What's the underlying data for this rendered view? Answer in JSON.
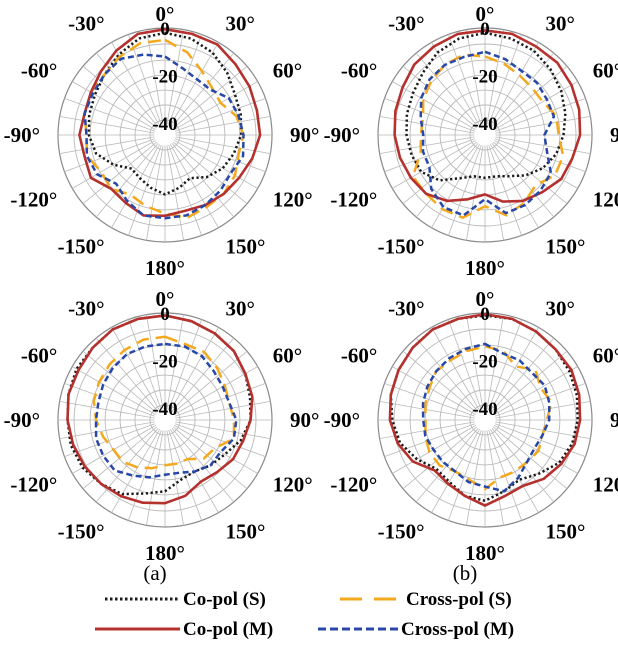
{
  "chart_data": {
    "type": "polar-line",
    "theta_unit": "deg",
    "r_unit": "dB",
    "r_range": [
      -45,
      0
    ],
    "r_ticks": [
      0,
      -20,
      -40
    ],
    "r_tick_labels": [
      "0",
      "-20",
      "-40"
    ],
    "theta_tick_labels": [
      "0°",
      "30°",
      "60°",
      "90°",
      "120°",
      "150°",
      "180°",
      "-150°",
      "-120°",
      "-90°",
      "-60°",
      "-30°"
    ],
    "theta_ticks": [
      0,
      30,
      60,
      90,
      120,
      150,
      180,
      -150,
      -120,
      -90,
      -60,
      -30
    ],
    "column_labels": [
      "(a)",
      "(b)"
    ],
    "legend": [
      {
        "name": "Co-pol (S)",
        "color": "#1a1a1a",
        "style": "dotted"
      },
      {
        "name": "Cross-pol (S)",
        "color": "#f4a81d",
        "style": "long-dash"
      },
      {
        "name": "Co-pol (M)",
        "color": "#b5312e",
        "style": "solid"
      },
      {
        "name": "Cross-pol (M)",
        "color": "#2748a8",
        "style": "dashed"
      }
    ],
    "panels": [
      {
        "id": "a-top",
        "series": [
          {
            "name": "Co-pol (S)",
            "theta": [
              0,
              15,
              30,
              45,
              60,
              75,
              90,
              105,
              120,
              135,
              150,
              165,
              180,
              195,
              210,
              225,
              240,
              255,
              270,
              285,
              300,
              315,
              330,
              345
            ],
            "r": [
              -2,
              -3,
              -5,
              -8,
              -11,
              -12,
              -13,
              -15,
              -17,
              -20,
              -24,
              -22,
              -20,
              -22,
              -24,
              -25,
              -20,
              -15,
              -13,
              -12,
              -11,
              -9,
              -6,
              -3
            ]
          },
          {
            "name": "Cross-pol (S)",
            "theta": [
              0,
              15,
              30,
              45,
              60,
              75,
              90,
              105,
              120,
              135,
              150,
              165,
              180,
              195,
              210,
              225,
              240,
              255,
              270,
              285,
              300,
              315,
              330,
              345
            ],
            "r": [
              -5,
              -9,
              -14,
              -17,
              -18,
              -14,
              -12,
              -13,
              -11,
              -10,
              -10,
              -9,
              -12,
              -14,
              -16,
              -13,
              -14,
              -11,
              -12,
              -10,
              -9,
              -9,
              -7,
              -5
            ]
          },
          {
            "name": "Co-pol (M)",
            "theta": [
              0,
              15,
              30,
              45,
              60,
              75,
              90,
              105,
              120,
              135,
              150,
              165,
              180,
              195,
              210,
              225,
              240,
              255,
              270,
              285,
              300,
              315,
              330,
              345
            ],
            "r": [
              -0.5,
              -1,
              -1,
              -3,
              -4,
              -5,
              -5,
              -7,
              -9,
              -10,
              -11,
              -12,
              -11,
              -10,
              -12,
              -13,
              -9,
              -10,
              -9,
              -10,
              -9,
              -7,
              -4,
              -1
            ]
          },
          {
            "name": "Cross-pol (M)",
            "theta": [
              0,
              15,
              30,
              45,
              60,
              75,
              90,
              105,
              120,
              135,
              150,
              165,
              180,
              195,
              210,
              225,
              240,
              255,
              270,
              285,
              300,
              315,
              330,
              345
            ],
            "r": [
              -12,
              -16,
              -18,
              -18,
              -14,
              -13,
              -12,
              -11,
              -13,
              -12,
              -11,
              -10,
              -10,
              -10,
              -13,
              -16,
              -12,
              -11,
              -12,
              -10,
              -10,
              -9,
              -8,
              -10
            ]
          }
        ]
      },
      {
        "id": "b-top",
        "series": [
          {
            "name": "Co-pol (S)",
            "theta": [
              0,
              15,
              30,
              45,
              60,
              75,
              90,
              105,
              120,
              135,
              150,
              165,
              180,
              195,
              210,
              225,
              240,
              255,
              270,
              285,
              300,
              315,
              330,
              345
            ],
            "r": [
              -2,
              -3,
              -4,
              -6,
              -8,
              -10,
              -12,
              -14,
              -17,
              -21,
              -25,
              -27,
              -27,
              -27,
              -24,
              -18,
              -14,
              -13,
              -12,
              -11,
              -10,
              -8,
              -5,
              -3
            ]
          },
          {
            "name": "Cross-pol (S)",
            "theta": [
              0,
              15,
              30,
              45,
              60,
              75,
              90,
              105,
              120,
              135,
              150,
              165,
              180,
              195,
              210,
              225,
              240,
              255,
              270,
              285,
              300,
              315,
              330,
              345
            ],
            "r": [
              -12,
              -14,
              -16,
              -17,
              -17,
              -14,
              -14,
              -11,
              -11,
              -15,
              -12,
              -10,
              -15,
              -9,
              -9,
              -10,
              -10,
              -17,
              -18,
              -18,
              -15,
              -13,
              -11,
              -10
            ]
          },
          {
            "name": "Co-pol (M)",
            "theta": [
              0,
              15,
              30,
              45,
              60,
              75,
              90,
              105,
              120,
              135,
              150,
              165,
              180,
              195,
              210,
              225,
              240,
              255,
              270,
              285,
              300,
              315,
              330,
              345
            ],
            "r": [
              -1,
              -1,
              -2,
              -2,
              -3,
              -4,
              -5,
              -7,
              -8,
              -11,
              -13,
              -16,
              -20,
              -17,
              -13,
              -10,
              -9,
              -8,
              -7,
              -6,
              -5,
              -3,
              -2,
              -1
            ]
          },
          {
            "name": "Cross-pol (M)",
            "theta": [
              0,
              15,
              30,
              45,
              60,
              75,
              90,
              105,
              120,
              135,
              150,
              165,
              180,
              195,
              210,
              225,
              240,
              255,
              270,
              285,
              300,
              315,
              330,
              345
            ],
            "r": [
              -10,
              -12,
              -14,
              -14,
              -15,
              -15,
              -20,
              -18,
              -13,
              -12,
              -11,
              -11,
              -18,
              -10,
              -10,
              -13,
              -18,
              -18,
              -19,
              -17,
              -14,
              -12,
              -11,
              -11
            ]
          }
        ]
      },
      {
        "id": "a-bottom",
        "series": [
          {
            "name": "Co-pol (S)",
            "theta": [
              0,
              15,
              30,
              45,
              60,
              75,
              90,
              105,
              120,
              135,
              150,
              165,
              180,
              195,
              210,
              225,
              240,
              255,
              270,
              285,
              300,
              315,
              330,
              345
            ],
            "r": [
              -1,
              -2,
              -3,
              -4,
              -6,
              -8,
              -9,
              -12,
              -16,
              -18,
              -20,
              -19,
              -15,
              -13,
              -9,
              -7,
              -5,
              -4,
              -4,
              -3,
              -2,
              -2,
              -1,
              -1
            ]
          },
          {
            "name": "Cross-pol (S)",
            "theta": [
              0,
              15,
              30,
              45,
              60,
              75,
              90,
              105,
              120,
              135,
              150,
              165,
              180,
              195,
              210,
              225,
              240,
              255,
              270,
              285,
              300,
              315,
              330,
              345
            ],
            "r": [
              -10,
              -12,
              -12,
              -14,
              -16,
              -17,
              -16,
              -15,
              -21,
              -22,
              -26,
              -26,
              -26,
              -24,
              -22,
              -20,
              -20,
              -18,
              -16,
              -14,
              -13,
              -12,
              -11,
              -10
            ]
          },
          {
            "name": "Co-pol (M)",
            "theta": [
              0,
              15,
              30,
              45,
              60,
              75,
              90,
              105,
              120,
              135,
              150,
              165,
              180,
              195,
              210,
              225,
              240,
              255,
              270,
              285,
              300,
              315,
              330,
              345
            ],
            "r": [
              -1,
              -2,
              -3,
              -4,
              -6,
              -7,
              -9,
              -11,
              -12,
              -14,
              -15,
              -12,
              -10,
              -9,
              -8,
              -7,
              -6,
              -5,
              -4,
              -3,
              -3,
              -2,
              -1,
              -1
            ]
          },
          {
            "name": "Cross-pol (M)",
            "theta": [
              0,
              15,
              30,
              45,
              60,
              75,
              90,
              105,
              120,
              135,
              150,
              165,
              180,
              195,
              210,
              225,
              240,
              255,
              270,
              285,
              300,
              315,
              330,
              345
            ],
            "r": [
              -13,
              -13,
              -14,
              -16,
              -17,
              -17,
              -15,
              -15,
              -18,
              -18,
              -20,
              -22,
              -22,
              -20,
              -18,
              -15,
              -15,
              -15,
              -16,
              -16,
              -15,
              -14,
              -13,
              -13
            ]
          }
        ]
      },
      {
        "id": "b-bottom",
        "series": [
          {
            "name": "Co-pol (S)",
            "theta": [
              0,
              15,
              30,
              45,
              60,
              75,
              90,
              105,
              120,
              135,
              150,
              165,
              180,
              195,
              210,
              225,
              240,
              255,
              270,
              285,
              300,
              315,
              330,
              345
            ],
            "r": [
              -1,
              -1,
              -2,
              -3,
              -4,
              -5,
              -6,
              -7,
              -9,
              -13,
              -16,
              -14,
              -11,
              -12,
              -15,
              -16,
              -12,
              -8,
              -6,
              -4,
              -3,
              -2,
              -1,
              -1
            ]
          },
          {
            "name": "Cross-pol (S)",
            "theta": [
              0,
              15,
              30,
              45,
              60,
              75,
              90,
              105,
              120,
              135,
              150,
              165,
              180,
              195,
              210,
              225,
              240,
              255,
              270,
              285,
              300,
              315,
              330,
              345
            ],
            "r": [
              -14,
              -15,
              -19,
              -15,
              -18,
              -16,
              -19,
              -20,
              -19,
              -20,
              -20,
              -20,
              -16,
              -19,
              -20,
              -18,
              -18,
              -19,
              -20,
              -19,
              -18,
              -16,
              -16,
              -15
            ]
          },
          {
            "name": "Co-pol (M)",
            "theta": [
              0,
              15,
              30,
              45,
              60,
              75,
              90,
              105,
              120,
              135,
              150,
              165,
              180,
              195,
              210,
              225,
              240,
              255,
              270,
              285,
              300,
              315,
              330,
              345
            ],
            "r": [
              -0.5,
              -1,
              -2,
              -3,
              -3,
              -4,
              -5,
              -6,
              -8,
              -10,
              -13,
              -12,
              -9,
              -12,
              -14,
              -15,
              -10,
              -7,
              -5,
              -4,
              -3,
              -2,
              -1,
              -1
            ]
          },
          {
            "name": "Cross-pol (M)",
            "theta": [
              0,
              15,
              30,
              45,
              60,
              75,
              90,
              105,
              120,
              135,
              150,
              165,
              180,
              195,
              210,
              225,
              240,
              255,
              270,
              285,
              300,
              315,
              330,
              345
            ],
            "r": [
              -13,
              -16,
              -16,
              -17,
              -16,
              -17,
              -18,
              -20,
              -21,
              -20,
              -17,
              -14,
              -17,
              -18,
              -20,
              -20,
              -20,
              -19,
              -19,
              -18,
              -17,
              -16,
              -15,
              -14
            ]
          }
        ]
      }
    ]
  }
}
